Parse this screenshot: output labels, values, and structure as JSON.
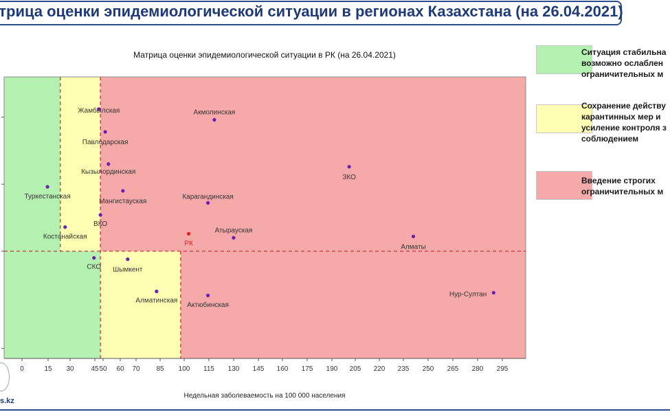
{
  "slide": {
    "title": "атрица оценки эпидемиологической ситуации в регионах Казахстана (на 26.04.2021)",
    "footer_text": "s.kz"
  },
  "legend": [
    {
      "text": "Ситуация стабильна\nвозможно ослаблен\nограничительных м",
      "color": "#b4f0b0"
    },
    {
      "text": "Сохранение действу\nкарантинных мер и\nусиление контроля з\nсоблюдением",
      "color": "#ffffb3"
    },
    {
      "text": "Введение строгих\nограничительных м",
      "color": "#f6a9a9"
    }
  ],
  "chart_data": {
    "type": "scatter",
    "title": "Матрица оценки эпидемиологической ситуации в РК (на 26.04.2021)",
    "xlabel": "Недельная заболеваемость на 100 000 населения",
    "ylabel": "",
    "xlim": [
      -10,
      315
    ],
    "ylim": [
      0.2,
      2.3
    ],
    "x_ticks": [
      0,
      15,
      30,
      45,
      50,
      60,
      70,
      85,
      100,
      115,
      130,
      145,
      160,
      175,
      190,
      205,
      220,
      235,
      250,
      265,
      280,
      295
    ],
    "grid": false,
    "zones": [
      {
        "x": [
          -10,
          25
        ],
        "y": [
          1.0,
          2.3
        ],
        "color": "#b4f0b0"
      },
      {
        "x": [
          25,
          50
        ],
        "y": [
          1.0,
          2.3
        ],
        "color": "#ffffb3"
      },
      {
        "x": [
          50,
          315
        ],
        "y": [
          1.0,
          2.3
        ],
        "color": "#f6a9a9"
      },
      {
        "x": [
          -10,
          50
        ],
        "y": [
          0.2,
          1.0
        ],
        "color": "#b4f0b0"
      },
      {
        "x": [
          50,
          100
        ],
        "y": [
          0.2,
          1.0
        ],
        "color": "#ffffb3"
      },
      {
        "x": [
          100,
          315
        ],
        "y": [
          0.2,
          1.0
        ],
        "color": "#f6a9a9"
      }
    ],
    "guide_lines": [
      {
        "axis": "x",
        "value": 25
      },
      {
        "axis": "x",
        "value": 50
      },
      {
        "axis": "x",
        "value": 100
      },
      {
        "axis": "y",
        "value": 1.0
      }
    ],
    "points": [
      {
        "label": "Жамбылская",
        "x": 49,
        "y": 2.06,
        "color": "#6a1fb0"
      },
      {
        "label": "Павлодарская",
        "x": 53,
        "y": 1.89,
        "color": "#6a1fb0"
      },
      {
        "label": "Кызылординская",
        "x": 55,
        "y": 1.65,
        "color": "#6a1fb0"
      },
      {
        "label": "Акмолинская",
        "x": 121,
        "y": 1.98,
        "color": "#6a1fb0"
      },
      {
        "label": "ЗКО",
        "x": 205,
        "y": 1.63,
        "color": "#6a1fb0"
      },
      {
        "label": "Туркестанская",
        "x": 17,
        "y": 1.48,
        "color": "#6a1fb0"
      },
      {
        "label": "Мангистауская",
        "x": 64,
        "y": 1.45,
        "color": "#6a1fb0"
      },
      {
        "label": "Карагандинская",
        "x": 117,
        "y": 1.36,
        "color": "#6a1fb0"
      },
      {
        "label": "ВКО",
        "x": 50,
        "y": 1.27,
        "color": "#6a1fb0"
      },
      {
        "label": "Костанайская",
        "x": 28,
        "y": 1.18,
        "color": "#6a1fb0"
      },
      {
        "label": "РК",
        "x": 105,
        "y": 1.13,
        "color": "#e02020"
      },
      {
        "label": "Атырауская",
        "x": 133,
        "y": 1.1,
        "color": "#6a1fb0"
      },
      {
        "label": "Алматы",
        "x": 245,
        "y": 1.11,
        "color": "#6a1fb0"
      },
      {
        "label": "СКО",
        "x": 46,
        "y": 0.95,
        "color": "#6a1fb0"
      },
      {
        "label": "Шымкент",
        "x": 67,
        "y": 0.94,
        "color": "#6a1fb0"
      },
      {
        "label": "Алматинская",
        "x": 85,
        "y": 0.7,
        "color": "#6a1fb0"
      },
      {
        "label": "Актюбинская",
        "x": 117,
        "y": 0.67,
        "color": "#6a1fb0"
      },
      {
        "label": "Нур-Султан",
        "x": 295,
        "y": 0.69,
        "color": "#6a1fb0"
      }
    ]
  }
}
